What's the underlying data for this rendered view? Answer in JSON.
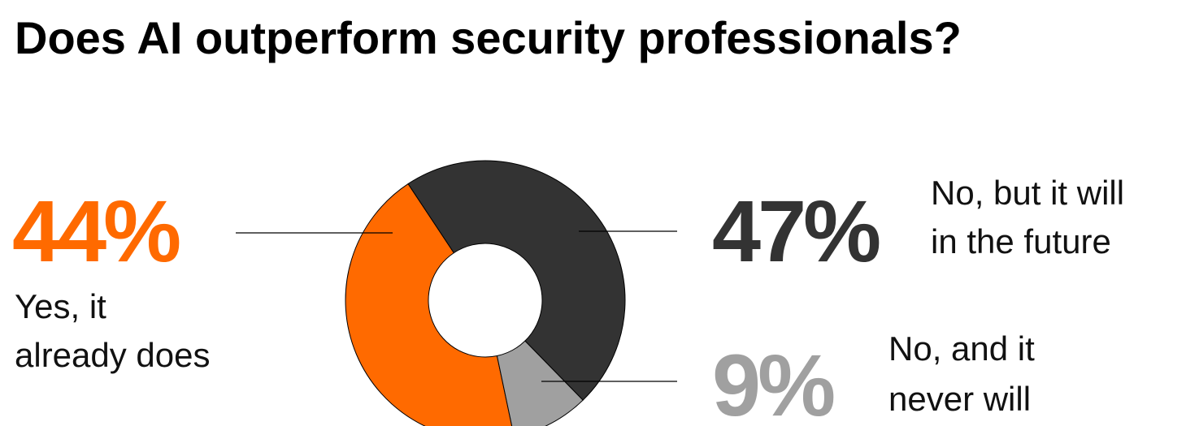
{
  "chart_data": {
    "type": "pie",
    "title": "Does AI outperform security professionals?",
    "categories": [
      "Yes, it\nalready does",
      "No, but it will\nin the future",
      "No, and it\nnever will"
    ],
    "values": [
      44,
      47,
      9
    ],
    "value_labels": [
      "44%",
      "47%",
      "9%"
    ],
    "colors": [
      "#ff6a00",
      "#333333",
      "#a0a0a0"
    ],
    "donut": true
  }
}
